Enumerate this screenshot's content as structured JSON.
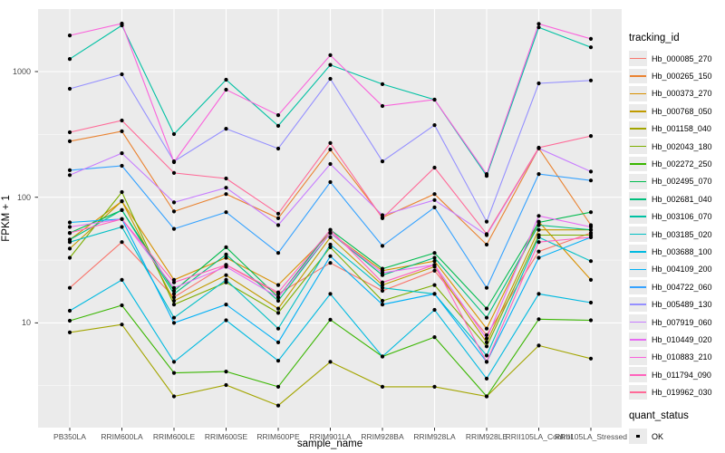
{
  "figure": {
    "background": "#FFFFFF",
    "panel_background": "#EBEBEB",
    "grid_color": "#FFFFFF",
    "axis_text_color": "#4D4D4D",
    "tick_mark_color": "#333333",
    "point_color": "#000000"
  },
  "axes": {
    "x_title": "sample_name",
    "y_title": "FPKM + 1",
    "y_tick_labels": [
      "1000",
      "100",
      "10"
    ]
  },
  "legend": {
    "tracking_title": "tracking_id",
    "quant_title": "quant_status",
    "quant_value": "OK"
  },
  "chart_data": {
    "type": "line",
    "title": "",
    "xlabel": "sample_name",
    "ylabel": "FPKM + 1",
    "y_scale": "log10",
    "ylim": [
      1.5,
      3200
    ],
    "y_major_ticks": [
      10,
      100,
      1000
    ],
    "y_minor_ticks": [
      3.162,
      31.62,
      316.2
    ],
    "grid": "on",
    "legend_position": "right",
    "point_marker": "black dot (quant_status OK)",
    "categories": [
      "PB350LA",
      "RRIM600LA",
      "RRIM600LE",
      "RRIM600SE",
      "RRIM600PE",
      "RRIM901LA",
      "RRIM928BA",
      "RRIM928LA",
      "RRIM928LE",
      "RRII105LA_Control",
      "RRII105LA_Stressed"
    ],
    "series": [
      {
        "name": "Hb_000085_270",
        "color": "#F8766D",
        "values": [
          19,
          44,
          16,
          29,
          17,
          30,
          18,
          26,
          8,
          37,
          52
        ]
      },
      {
        "name": "Hb_000265_150",
        "color": "#EA8331",
        "values": [
          279,
          335,
          77,
          106,
          68,
          240,
          69,
          106,
          42,
          245,
          60
        ]
      },
      {
        "name": "Hb_000373_270",
        "color": "#D89000",
        "values": [
          46,
          93,
          22,
          33,
          20,
          52,
          26,
          31,
          9,
          64,
          22
        ]
      },
      {
        "name": "Hb_000768_050",
        "color": "#C09B00",
        "values": [
          39,
          93,
          15,
          24,
          13,
          48,
          20,
          28,
          7,
          55,
          55
        ]
      },
      {
        "name": "Hb_001158_040",
        "color": "#A3A500",
        "values": [
          8.4,
          9.7,
          2.6,
          3.2,
          2.2,
          4.9,
          3.1,
          3.1,
          2.6,
          6.6,
          5.2
        ]
      },
      {
        "name": "Hb_002043_180",
        "color": "#7CAE00",
        "values": [
          33,
          110,
          14,
          21,
          12,
          40,
          15,
          20,
          6.5,
          50,
          50
        ]
      },
      {
        "name": "Hb_002272_250",
        "color": "#39B600",
        "values": [
          10.4,
          13.8,
          4.0,
          4.1,
          3.1,
          10.6,
          5.4,
          7.7,
          2.6,
          10.7,
          10.5
        ]
      },
      {
        "name": "Hb_002495_070",
        "color": "#00BB4E",
        "values": [
          52,
          79,
          18,
          40,
          16,
          55,
          27,
          36,
          13,
          63,
          76
        ]
      },
      {
        "name": "Hb_002681_040",
        "color": "#00BF7D",
        "values": [
          46,
          79,
          17,
          35,
          15,
          52,
          24,
          33,
          11,
          60,
          55
        ]
      },
      {
        "name": "Hb_003106_070",
        "color": "#00C1A3",
        "values": [
          1260,
          2330,
          318,
          861,
          370,
          1130,
          794,
          598,
          148,
          2250,
          1560
        ]
      },
      {
        "name": "Hb_003185_020",
        "color": "#00BFC4",
        "values": [
          44,
          58,
          11,
          22,
          9,
          42,
          19,
          17,
          5.5,
          48,
          31
        ]
      },
      {
        "name": "Hb_003688_100",
        "color": "#00BAE0",
        "values": [
          12.5,
          22,
          4.9,
          10.5,
          5.0,
          17,
          5.4,
          12.7,
          3.6,
          17,
          14.5
        ]
      },
      {
        "name": "Hb_004109_200",
        "color": "#00B0F6",
        "values": [
          63,
          67,
          10,
          14,
          7,
          34,
          14,
          17,
          4.9,
          33,
          48
        ]
      },
      {
        "name": "Hb_004722_060",
        "color": "#35A2FF",
        "values": [
          164,
          178,
          56,
          76,
          36,
          132,
          41,
          83,
          19,
          153,
          136
        ]
      },
      {
        "name": "Hb_005489_130",
        "color": "#9590FF",
        "values": [
          729,
          952,
          193,
          351,
          244,
          875,
          193,
          375,
          64,
          806,
          850
        ]
      },
      {
        "name": "Hb_007919_060",
        "color": "#C77CFF",
        "values": [
          150,
          224,
          91,
          119,
          60,
          184,
          72,
          95,
          50,
          245,
          160
        ]
      },
      {
        "name": "Hb_010449_020",
        "color": "#E76BF3",
        "values": [
          58,
          67,
          19,
          28,
          16,
          52,
          25,
          29,
          7.5,
          71,
          58
        ]
      },
      {
        "name": "Hb_010883_210",
        "color": "#FA62DB",
        "values": [
          1940,
          2410,
          190,
          717,
          450,
          1350,
          532,
          598,
          153,
          2400,
          1820
        ]
      },
      {
        "name": "Hb_011794_090",
        "color": "#FF62BC",
        "values": [
          52,
          67,
          21,
          29,
          17.5,
          55,
          21,
          29,
          4.9,
          44,
          48
        ]
      },
      {
        "name": "Hb_019962_030",
        "color": "#FF6A98",
        "values": [
          329,
          408,
          156,
          141,
          74,
          270,
          68,
          172,
          51,
          248,
          307
        ]
      }
    ]
  }
}
